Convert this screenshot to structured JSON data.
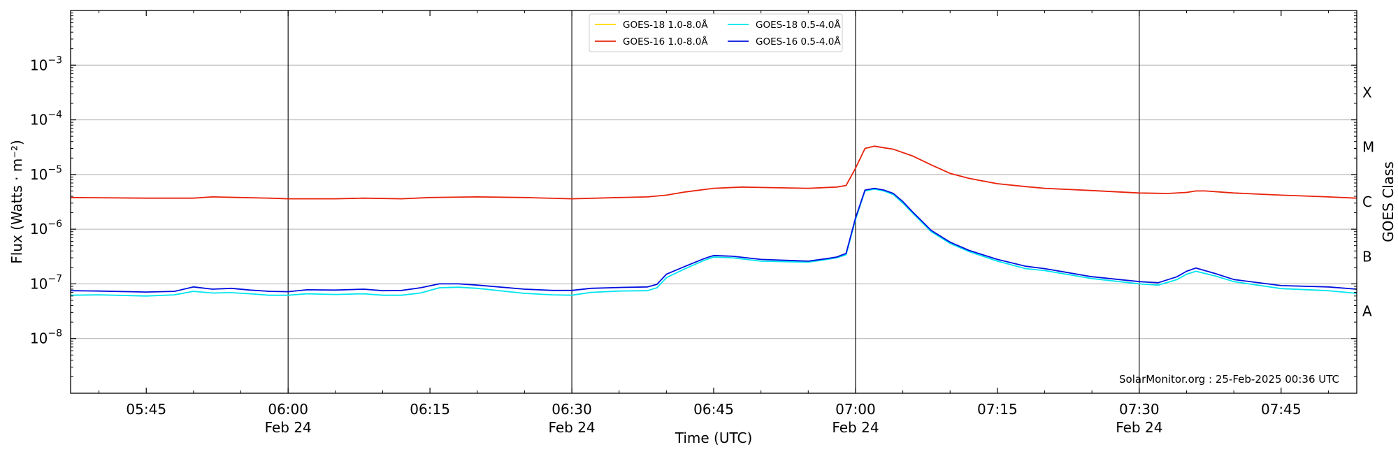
{
  "chart_data": {
    "type": "line",
    "title": "",
    "xlabel": "Time (UTC)",
    "ylabel": "Flux (Watts · m⁻²)",
    "y_scale": "log",
    "ylim": [
      1e-09,
      0.01
    ],
    "xlim": [
      "05:37",
      "07:53"
    ],
    "grid": "horizontal",
    "x_ticks": [
      {
        "time": "05:45",
        "label": "05:45",
        "date": ""
      },
      {
        "time": "06:00",
        "label": "06:00",
        "date": "Feb 24"
      },
      {
        "time": "06:15",
        "label": "06:15",
        "date": ""
      },
      {
        "time": "06:30",
        "label": "06:30",
        "date": "Feb 24"
      },
      {
        "time": "06:45",
        "label": "06:45",
        "date": ""
      },
      {
        "time": "07:00",
        "label": "07:00",
        "date": "Feb 24"
      },
      {
        "time": "07:15",
        "label": "07:15",
        "date": ""
      },
      {
        "time": "07:30",
        "label": "07:30",
        "date": "Feb 24"
      },
      {
        "time": "07:45",
        "label": "07:45",
        "date": ""
      }
    ],
    "vertical_lines": [
      "06:00",
      "06:30",
      "07:00",
      "07:30"
    ],
    "y_ticks": [
      {
        "value": 1e-08,
        "base": "10",
        "exp": "−8"
      },
      {
        "value": 1e-07,
        "base": "10",
        "exp": "−7"
      },
      {
        "value": 1e-06,
        "base": "10",
        "exp": "−6"
      },
      {
        "value": 1e-05,
        "base": "10",
        "exp": "−5"
      },
      {
        "value": 0.0001,
        "base": "10",
        "exp": "−4"
      },
      {
        "value": 0.001,
        "base": "10",
        "exp": "−3"
      }
    ],
    "right_axis": {
      "label": "GOES Class",
      "classes": [
        {
          "label": "A",
          "value": 3.16e-08
        },
        {
          "label": "B",
          "value": 3.16e-07
        },
        {
          "label": "C",
          "value": 3.16e-06
        },
        {
          "label": "M",
          "value": 3.16e-05
        },
        {
          "label": "X",
          "value": 0.000316
        }
      ]
    },
    "legend": {
      "position": "top-center",
      "columns": 2
    },
    "credit": "SolarMonitor.org : 25-Feb-2025 00:36 UTC",
    "series": [
      {
        "name": "GOES-18 1.0-8.0Å",
        "color": "#ffd700",
        "x": [],
        "y": []
      },
      {
        "name": "GOES-16 1.0-8.0Å",
        "color": "#e8220a",
        "x": [
          "05:37",
          "05:45",
          "05:50",
          "05:52",
          "05:55",
          "05:58",
          "06:00",
          "06:05",
          "06:08",
          "06:12",
          "06:15",
          "06:20",
          "06:25",
          "06:30",
          "06:35",
          "06:38",
          "06:40",
          "06:42",
          "06:45",
          "06:48",
          "06:50",
          "06:55",
          "06:58",
          "06:59",
          "07:00",
          "07:01",
          "07:02",
          "07:04",
          "07:06",
          "07:08",
          "07:10",
          "07:12",
          "07:15",
          "07:18",
          "07:20",
          "07:25",
          "07:30",
          "07:33",
          "07:35",
          "07:36",
          "07:37",
          "07:40",
          "07:45",
          "07:50",
          "07:53"
        ],
        "y": [
          3.8e-06,
          3.7e-06,
          3.7e-06,
          3.9e-06,
          3.8e-06,
          3.7e-06,
          3.6e-06,
          3.6e-06,
          3.7e-06,
          3.6e-06,
          3.8e-06,
          3.9e-06,
          3.8e-06,
          3.6e-06,
          3.8e-06,
          3.9e-06,
          4.2e-06,
          4.8e-06,
          5.6e-06,
          5.9e-06,
          5.8e-06,
          5.6e-06,
          5.9e-06,
          6.3e-06,
          1.3e-05,
          3e-05,
          3.3e-05,
          2.9e-05,
          2.2e-05,
          1.5e-05,
          1.05e-05,
          8.5e-06,
          6.8e-06,
          6e-06,
          5.6e-06,
          5.1e-06,
          4.6e-06,
          4.5e-06,
          4.7e-06,
          5e-06,
          5e-06,
          4.6e-06,
          4.2e-06,
          3.9e-06,
          3.7e-06
        ]
      },
      {
        "name": "GOES-18 0.5-4.0Å",
        "color": "#00e5ee",
        "x": [
          "05:37",
          "05:40",
          "05:45",
          "05:48",
          "05:50",
          "05:52",
          "05:54",
          "05:56",
          "05:58",
          "06:00",
          "06:02",
          "06:05",
          "06:08",
          "06:10",
          "06:12",
          "06:14",
          "06:16",
          "06:18",
          "06:20",
          "06:25",
          "06:28",
          "06:30",
          "06:32",
          "06:35",
          "06:38",
          "06:39",
          "06:40",
          "06:42",
          "06:44",
          "06:45",
          "06:47",
          "06:50",
          "06:55",
          "06:57",
          "06:58",
          "06:59",
          "07:00",
          "07:01",
          "07:02",
          "07:03",
          "07:04",
          "07:05",
          "07:06",
          "07:08",
          "07:10",
          "07:12",
          "07:15",
          "07:18",
          "07:20",
          "07:25",
          "07:30",
          "07:32",
          "07:34",
          "07:35",
          "07:36",
          "07:38",
          "07:40",
          "07:45",
          "07:50",
          "07:53"
        ],
        "y": [
          6.2e-08,
          6.3e-08,
          6e-08,
          6.3e-08,
          7.3e-08,
          6.8e-08,
          6.9e-08,
          6.6e-08,
          6.2e-08,
          6.2e-08,
          6.6e-08,
          6.4e-08,
          6.6e-08,
          6.2e-08,
          6.2e-08,
          6.8e-08,
          8.5e-08,
          8.7e-08,
          8.3e-08,
          6.7e-08,
          6.3e-08,
          6.2e-08,
          7e-08,
          7.4e-08,
          7.5e-08,
          8.5e-08,
          1.3e-07,
          1.9e-07,
          2.7e-07,
          3.1e-07,
          3e-07,
          2.6e-07,
          2.5e-07,
          2.8e-07,
          3e-07,
          3.4e-07,
          1.5e-06,
          5e-06,
          5.4e-06,
          5e-06,
          4.3e-06,
          3e-06,
          2e-06,
          9e-07,
          5.5e-07,
          3.9e-07,
          2.6e-07,
          1.9e-07,
          1.75e-07,
          1.25e-07,
          1e-07,
          9.5e-08,
          1.2e-07,
          1.5e-07,
          1.7e-07,
          1.4e-07,
          1.1e-07,
          8.2e-08,
          7.5e-08,
          6.7e-08
        ]
      },
      {
        "name": "GOES-16 0.5-4.0Å",
        "color": "#0010e0",
        "x": [
          "05:37",
          "05:40",
          "05:45",
          "05:48",
          "05:50",
          "05:52",
          "05:54",
          "05:56",
          "05:58",
          "06:00",
          "06:02",
          "06:05",
          "06:08",
          "06:10",
          "06:12",
          "06:14",
          "06:16",
          "06:18",
          "06:20",
          "06:25",
          "06:28",
          "06:30",
          "06:32",
          "06:35",
          "06:38",
          "06:39",
          "06:40",
          "06:42",
          "06:44",
          "06:45",
          "06:47",
          "06:50",
          "06:55",
          "06:57",
          "06:58",
          "06:59",
          "07:00",
          "07:01",
          "07:02",
          "07:03",
          "07:04",
          "07:05",
          "07:06",
          "07:08",
          "07:10",
          "07:12",
          "07:15",
          "07:18",
          "07:20",
          "07:25",
          "07:30",
          "07:32",
          "07:34",
          "07:35",
          "07:36",
          "07:38",
          "07:40",
          "07:45",
          "07:50",
          "07:53"
        ],
        "y": [
          7.5e-08,
          7.4e-08,
          7.1e-08,
          7.3e-08,
          8.8e-08,
          8e-08,
          8.3e-08,
          7.7e-08,
          7.3e-08,
          7.2e-08,
          7.8e-08,
          7.7e-08,
          8e-08,
          7.5e-08,
          7.6e-08,
          8.5e-08,
          1e-07,
          1e-07,
          9.5e-08,
          8e-08,
          7.6e-08,
          7.6e-08,
          8.3e-08,
          8.6e-08,
          8.8e-08,
          9.8e-08,
          1.5e-07,
          2.1e-07,
          2.9e-07,
          3.3e-07,
          3.2e-07,
          2.8e-07,
          2.6e-07,
          2.9e-07,
          3.1e-07,
          3.6e-07,
          1.6e-06,
          5.2e-06,
          5.6e-06,
          5.2e-06,
          4.5e-06,
          3.2e-06,
          2.1e-06,
          9.5e-07,
          5.8e-07,
          4.1e-07,
          2.8e-07,
          2.1e-07,
          1.9e-07,
          1.35e-07,
          1.1e-07,
          1.05e-07,
          1.35e-07,
          1.7e-07,
          1.95e-07,
          1.55e-07,
          1.2e-07,
          9.3e-08,
          8.8e-08,
          8e-08
        ]
      }
    ]
  }
}
